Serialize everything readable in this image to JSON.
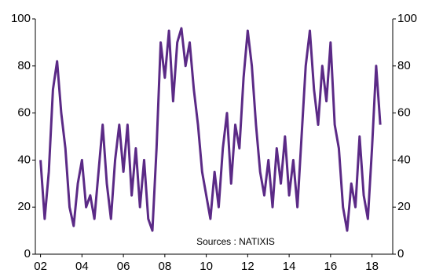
{
  "chart_data": {
    "type": "line",
    "annotation": "Sources : NATIXIS",
    "x": [
      2002.0,
      2002.2,
      2002.4,
      2002.6,
      2002.8,
      2003.0,
      2003.2,
      2003.4,
      2003.6,
      2003.8,
      2004.0,
      2004.2,
      2004.4,
      2004.6,
      2004.8,
      2005.0,
      2005.2,
      2005.4,
      2005.6,
      2005.8,
      2006.0,
      2006.2,
      2006.4,
      2006.6,
      2006.8,
      2007.0,
      2007.2,
      2007.4,
      2007.6,
      2007.8,
      2008.0,
      2008.2,
      2008.4,
      2008.6,
      2008.8,
      2009.0,
      2009.2,
      2009.4,
      2009.6,
      2009.8,
      2010.0,
      2010.2,
      2010.4,
      2010.6,
      2010.8,
      2011.0,
      2011.2,
      2011.4,
      2011.6,
      2011.8,
      2012.0,
      2012.2,
      2012.4,
      2012.6,
      2012.8,
      2013.0,
      2013.2,
      2013.4,
      2013.6,
      2013.8,
      2014.0,
      2014.2,
      2014.4,
      2014.6,
      2014.8,
      2015.0,
      2015.2,
      2015.4,
      2015.6,
      2015.8,
      2016.0,
      2016.2,
      2016.4,
      2016.6,
      2016.8,
      2017.0,
      2017.2,
      2017.4,
      2017.6,
      2017.8,
      2018.0,
      2018.2,
      2018.4
    ],
    "series": [
      {
        "color": "#5b2a86",
        "values": [
          40,
          15,
          35,
          70,
          82,
          60,
          45,
          20,
          12,
          30,
          40,
          20,
          25,
          15,
          35,
          55,
          30,
          15,
          40,
          55,
          35,
          55,
          25,
          45,
          20,
          40,
          15,
          10,
          45,
          90,
          75,
          95,
          65,
          90,
          96,
          80,
          90,
          70,
          55,
          35,
          25,
          15,
          35,
          20,
          45,
          60,
          30,
          55,
          45,
          75,
          95,
          80,
          55,
          35,
          25,
          40,
          20,
          45,
          30,
          50,
          25,
          40,
          20,
          50,
          80,
          95,
          70,
          55,
          80,
          65,
          90,
          55,
          45,
          20,
          10,
          30,
          20,
          50,
          25,
          15,
          45,
          80,
          55
        ]
      }
    ],
    "xlim": [
      2001.75,
      2019.0
    ],
    "xticks": [
      {
        "value": 2002,
        "label": "02"
      },
      {
        "value": 2004,
        "label": "04"
      },
      {
        "value": 2006,
        "label": "06"
      },
      {
        "value": 2008,
        "label": "08"
      },
      {
        "value": 2010,
        "label": "10"
      },
      {
        "value": 2012,
        "label": "12"
      },
      {
        "value": 2014,
        "label": "14"
      },
      {
        "value": 2016,
        "label": "16"
      },
      {
        "value": 2018,
        "label": "18"
      }
    ],
    "ylim": [
      0,
      100
    ],
    "yticks": [
      0,
      20,
      40,
      60,
      80,
      100
    ],
    "y2lim": [
      0,
      100
    ],
    "y2ticks": [
      0,
      20,
      40,
      60,
      80,
      100
    ],
    "grid": false
  }
}
